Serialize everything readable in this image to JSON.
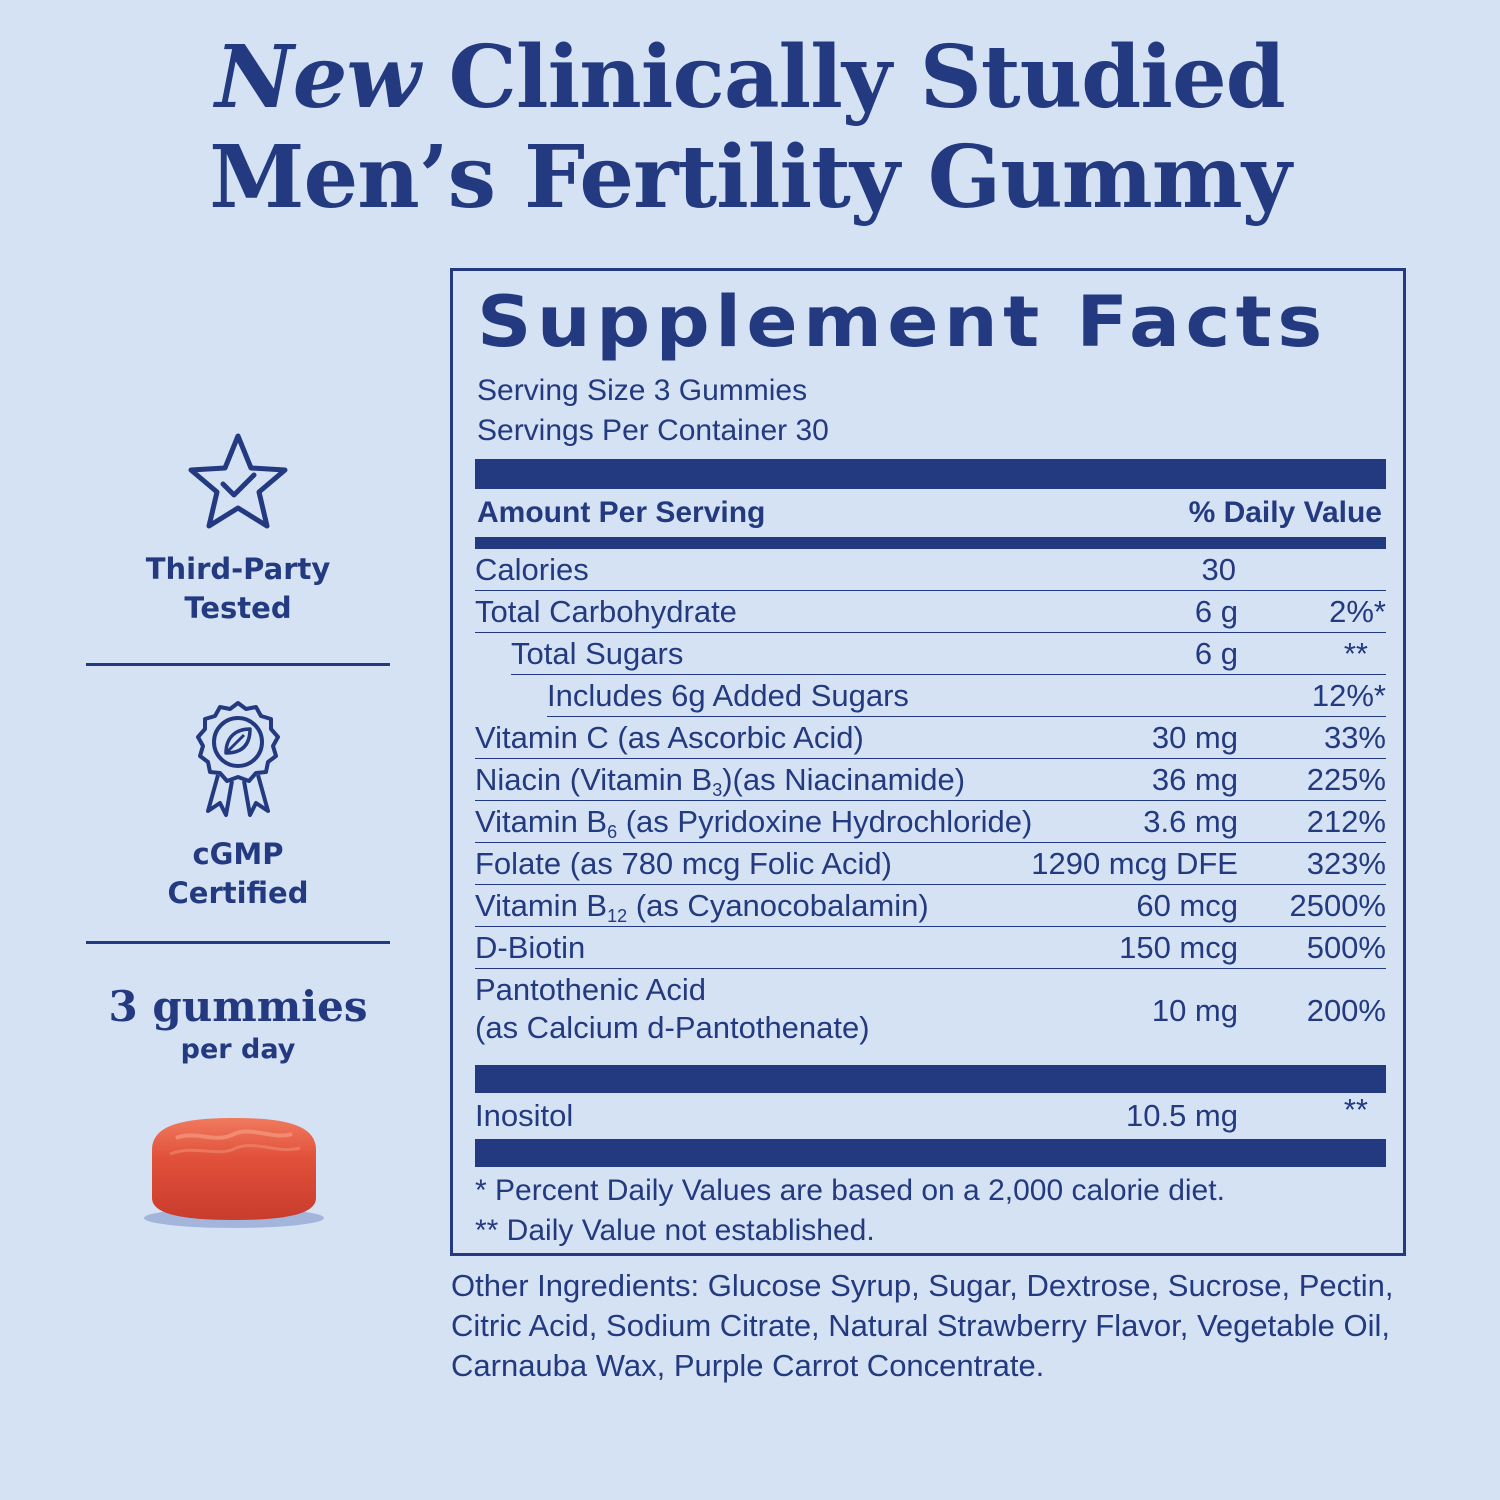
{
  "headline": {
    "new_word": "New",
    "line1_rest": "Clinically Studied",
    "line2": "Men’s Fertility Gummy"
  },
  "badges": {
    "tested": {
      "line1": "Third-Party",
      "line2": "Tested",
      "icon": "star-check-icon"
    },
    "certified": {
      "line1": "cGMP",
      "line2": "Certified",
      "icon": "award-ribbon-icon"
    },
    "dose": {
      "line1": "3 gummies",
      "line2": "per day"
    }
  },
  "facts": {
    "title": "Supplement Facts",
    "serving_size": "Serving Size 3 Gummies",
    "servings_per_container": "Servings Per Container 30",
    "header_amount": "Amount Per Serving",
    "header_dv": "% Daily Value",
    "rows": [
      {
        "name": "Calories",
        "amount": "30",
        "dv": ""
      },
      {
        "name": "Total Carbohydrate",
        "amount": "6 g",
        "dv": "2%*"
      },
      {
        "name": "Total Sugars",
        "amount": "6 g",
        "dv": "**"
      },
      {
        "name": "Includes 6g Added Sugars",
        "amount": "",
        "dv": "12%*"
      },
      {
        "name": "Vitamin C (as Ascorbic Acid)",
        "amount": "30 mg",
        "dv": "33%"
      },
      {
        "name_pre": "Niacin (Vitamin B",
        "name_sub": "3",
        "name_post": ")(as Niacinamide)",
        "amount": "36 mg",
        "dv": "225%"
      },
      {
        "name_pre": "Vitamin B",
        "name_sub": "6",
        "name_post": " (as Pyridoxine Hydrochloride)",
        "amount": "3.6 mg",
        "dv": "212%"
      },
      {
        "name": "Folate (as 780 mcg Folic Acid)",
        "amount": "1290 mcg DFE",
        "dv": "323%"
      },
      {
        "name_pre": "Vitamin B",
        "name_sub": "12",
        "name_post": " (as Cyanocobalamin)",
        "amount": "60 mcg",
        "dv": "2500%"
      },
      {
        "name": "D-Biotin",
        "amount": "150 mcg",
        "dv": "500%"
      },
      {
        "name_line1": "Pantothenic Acid",
        "name_line2": "(as Calcium d-Pantothenate)",
        "amount": "10 mg",
        "dv": "200%"
      }
    ],
    "inositol": {
      "name": "Inositol",
      "amount": "10.5 mg",
      "dv": "**"
    },
    "footnote1": "* Percent Daily Values are based on a 2,000 calorie diet.",
    "footnote2": "** Daily Value not established."
  },
  "other_ingredients": "Other Ingredients: Glucose Syrup, Sugar, Dextrose, Sucrose, Pectin, Citric Acid, Sodium Citrate, Natural Strawberry Flavor, Vegetable Oil, Carnauba Wax, Purple Carrot Concentrate.",
  "colors": {
    "navy": "#233a80",
    "background": "#d5e2f3",
    "gummy": "#e0503a"
  }
}
